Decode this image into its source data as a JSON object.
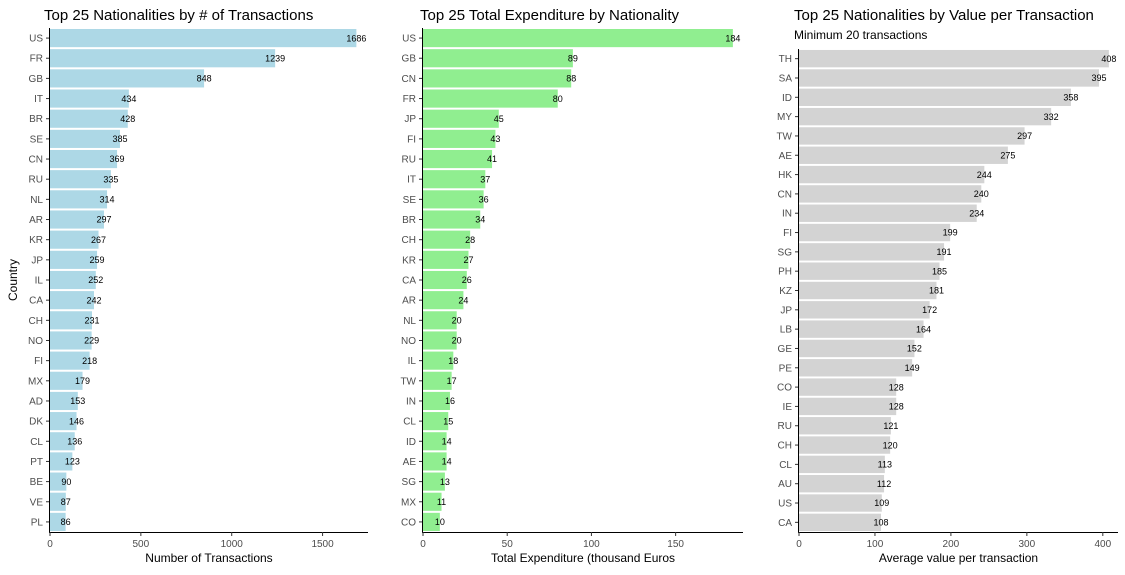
{
  "chart_data": [
    {
      "type": "bar",
      "orientation": "horizontal",
      "title": "Top 25 Nationalities by # of Transactions",
      "subtitle": "",
      "xlabel": "Number of Transactions",
      "ylabel": "Country",
      "color": "#add8e6",
      "xlim": [
        0,
        1750
      ],
      "xticks": [
        0,
        500,
        1000,
        1500
      ],
      "grid": false,
      "categories": [
        "US",
        "FR",
        "GB",
        "IT",
        "BR",
        "SE",
        "CN",
        "RU",
        "NL",
        "AR",
        "KR",
        "JP",
        "IL",
        "CA",
        "CH",
        "NO",
        "FI",
        "MX",
        "AD",
        "DK",
        "CL",
        "PT",
        "BE",
        "VE",
        "PL"
      ],
      "values": [
        1686,
        1239,
        848,
        434,
        428,
        385,
        369,
        335,
        314,
        297,
        267,
        259,
        252,
        242,
        231,
        229,
        218,
        179,
        153,
        146,
        136,
        123,
        90,
        87,
        86
      ],
      "data_labels": [
        "1686",
        "1239",
        "848",
        "434",
        "428",
        "385",
        "369",
        "335",
        "314",
        "297",
        "267",
        "259",
        "252",
        "242",
        "231",
        "229",
        "218",
        "179",
        "153",
        "146",
        "136",
        "123",
        "90",
        "87",
        "86"
      ]
    },
    {
      "type": "bar",
      "orientation": "horizontal",
      "title": "Top 25 Total Expenditure by Nationality",
      "subtitle": "",
      "xlabel": "Total Expenditure (thousand Euros",
      "ylabel": "",
      "color": "#90ee90",
      "xlim": [
        0,
        190
      ],
      "xticks": [
        0,
        50,
        100,
        150
      ],
      "grid": false,
      "categories": [
        "US",
        "GB",
        "CN",
        "FR",
        "JP",
        "FI",
        "RU",
        "IT",
        "SE",
        "BR",
        "CH",
        "KR",
        "CA",
        "AR",
        "NL",
        "NO",
        "IL",
        "TW",
        "IN",
        "CL",
        "ID",
        "AE",
        "SG",
        "MX",
        "CO"
      ],
      "values": [
        184,
        89,
        88,
        80,
        45,
        43,
        41,
        37,
        36,
        34,
        28,
        27,
        26,
        24,
        20,
        20,
        18,
        17,
        16,
        15,
        14,
        14,
        13,
        11,
        10
      ],
      "data_labels": [
        "184",
        "89",
        "88",
        "80",
        "45",
        "43",
        "41",
        "37",
        "36",
        "34",
        "28",
        "27",
        "26",
        "24",
        "20",
        "20",
        "18",
        "17",
        "16",
        "15",
        "14",
        "14",
        "13",
        "11",
        "10"
      ]
    },
    {
      "type": "bar",
      "orientation": "horizontal",
      "title": "Top 25 Nationalities by Value per Transaction",
      "subtitle": "Minimum 20 transactions",
      "xlabel": "Average value per transaction",
      "ylabel": "",
      "color": "#d3d3d3",
      "xlim": [
        0,
        420
      ],
      "xticks": [
        0,
        100,
        200,
        300,
        400
      ],
      "grid": false,
      "categories": [
        "TH",
        "SA",
        "ID",
        "MY",
        "TW",
        "AE",
        "HK",
        "CN",
        "IN",
        "FI",
        "SG",
        "PH",
        "KZ",
        "JP",
        "LB",
        "GE",
        "PE",
        "CO",
        "IE",
        "RU",
        "CH",
        "CL",
        "AU",
        "US",
        "CA"
      ],
      "values": [
        408,
        395,
        358,
        332,
        297,
        275,
        244,
        240,
        234,
        199,
        191,
        185,
        181,
        172,
        164,
        152,
        149,
        128,
        128,
        121,
        120,
        113,
        112,
        109,
        108
      ],
      "data_labels": [
        "408",
        "395",
        "358",
        "332",
        "297",
        "275",
        "244",
        "240",
        "234",
        "199",
        "191",
        "185",
        "181",
        "172",
        "164",
        "152",
        "149",
        "128",
        "128",
        "121",
        "120",
        "113",
        "112",
        "109",
        "108"
      ]
    }
  ]
}
